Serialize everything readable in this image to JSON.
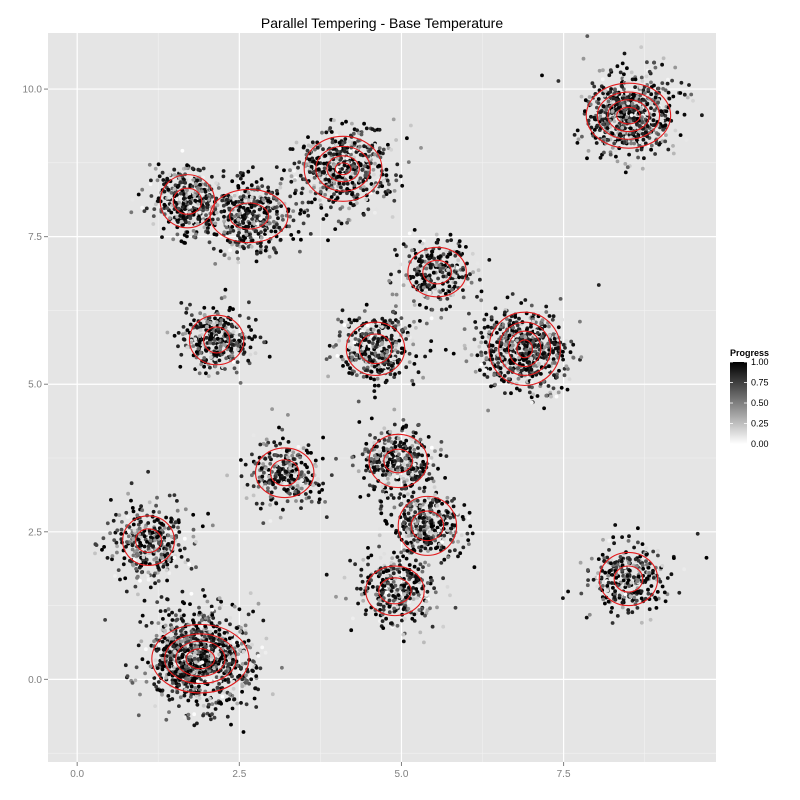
{
  "chart_data": {
    "type": "scatter",
    "title": "Parallel Tempering - Base Temperature",
    "xlabel": "",
    "ylabel": "",
    "xlim": [
      -0.45,
      9.85
    ],
    "ylim": [
      -1.4,
      10.95
    ],
    "x_ticks": [
      {
        "value": 0,
        "label": "0.0"
      },
      {
        "value": 2.5,
        "label": "2.5"
      },
      {
        "value": 5,
        "label": "5.0"
      },
      {
        "value": 7.5,
        "label": "7.5"
      }
    ],
    "y_ticks": [
      {
        "value": 0,
        "label": "0.0"
      },
      {
        "value": 2.5,
        "label": "2.5"
      },
      {
        "value": 5,
        "label": "5.0"
      },
      {
        "value": 7.5,
        "label": "7.5"
      },
      {
        "value": 10,
        "label": "10.0"
      }
    ],
    "grid": true,
    "legend": {
      "title": "Progress",
      "placement": "right",
      "ticks": [
        {
          "value": 1.0,
          "label": "1.00"
        },
        {
          "value": 0.75,
          "label": "0.75"
        },
        {
          "value": 0.5,
          "label": "0.50"
        },
        {
          "value": 0.25,
          "label": "0.25"
        },
        {
          "value": 0.0,
          "label": "0.00"
        }
      ],
      "colors": {
        "low": "#ffffff",
        "high": "#000000"
      }
    },
    "contour_color": "#e31a1c",
    "clusters": [
      {
        "cx": 1.9,
        "cy": 0.35,
        "spread": 0.42,
        "points": 900,
        "contours": [
          [
            0.75,
            0.58
          ],
          [
            0.55,
            0.42
          ],
          [
            0.38,
            0.3
          ],
          [
            0.22,
            0.17
          ]
        ]
      },
      {
        "cx": 1.1,
        "cy": 2.35,
        "spread": 0.33,
        "points": 350,
        "contours": [
          [
            0.4,
            0.42
          ],
          [
            0.2,
            0.2
          ]
        ]
      },
      {
        "cx": 3.2,
        "cy": 3.5,
        "spread": 0.3,
        "points": 260,
        "contours": [
          [
            0.45,
            0.42
          ],
          [
            0.22,
            0.22
          ]
        ]
      },
      {
        "cx": 4.9,
        "cy": 1.5,
        "spread": 0.32,
        "points": 300,
        "contours": [
          [
            0.45,
            0.42
          ],
          [
            0.25,
            0.22
          ]
        ]
      },
      {
        "cx": 4.95,
        "cy": 3.7,
        "spread": 0.3,
        "points": 300,
        "contours": [
          [
            0.45,
            0.45
          ],
          [
            0.22,
            0.2
          ]
        ]
      },
      {
        "cx": 5.4,
        "cy": 2.6,
        "spread": 0.3,
        "points": 320,
        "contours": [
          [
            0.45,
            0.5
          ],
          [
            0.25,
            0.25
          ]
        ]
      },
      {
        "cx": 8.5,
        "cy": 1.7,
        "spread": 0.32,
        "points": 300,
        "contours": [
          [
            0.45,
            0.45
          ],
          [
            0.22,
            0.22
          ]
        ]
      },
      {
        "cx": 2.15,
        "cy": 5.75,
        "spread": 0.28,
        "points": 320,
        "contours": [
          [
            0.42,
            0.42
          ],
          [
            0.2,
            0.22
          ]
        ]
      },
      {
        "cx": 4.6,
        "cy": 5.6,
        "spread": 0.3,
        "points": 320,
        "contours": [
          [
            0.45,
            0.45
          ],
          [
            0.25,
            0.25
          ]
        ]
      },
      {
        "cx": 5.55,
        "cy": 6.9,
        "spread": 0.28,
        "points": 260,
        "contours": [
          [
            0.45,
            0.42
          ],
          [
            0.22,
            0.2
          ]
        ]
      },
      {
        "cx": 6.9,
        "cy": 5.6,
        "spread": 0.35,
        "points": 550,
        "contours": [
          [
            0.55,
            0.62
          ],
          [
            0.4,
            0.45
          ],
          [
            0.25,
            0.3
          ],
          [
            0.12,
            0.15
          ]
        ]
      },
      {
        "cx": 1.7,
        "cy": 8.1,
        "spread": 0.3,
        "points": 350,
        "contours": [
          [
            0.42,
            0.45
          ],
          [
            0.22,
            0.22
          ]
        ]
      },
      {
        "cx": 2.65,
        "cy": 7.85,
        "spread": 0.32,
        "points": 350,
        "contours": [
          [
            0.6,
            0.45
          ],
          [
            0.3,
            0.22
          ]
        ]
      },
      {
        "cx": 4.1,
        "cy": 8.65,
        "spread": 0.38,
        "points": 500,
        "contours": [
          [
            0.6,
            0.55
          ],
          [
            0.42,
            0.38
          ],
          [
            0.25,
            0.22
          ],
          [
            0.12,
            0.1
          ]
        ]
      },
      {
        "cx": 8.5,
        "cy": 9.55,
        "spread": 0.35,
        "points": 650,
        "contours": [
          [
            0.65,
            0.55
          ],
          [
            0.48,
            0.4
          ],
          [
            0.32,
            0.27
          ],
          [
            0.18,
            0.14
          ]
        ]
      }
    ]
  }
}
